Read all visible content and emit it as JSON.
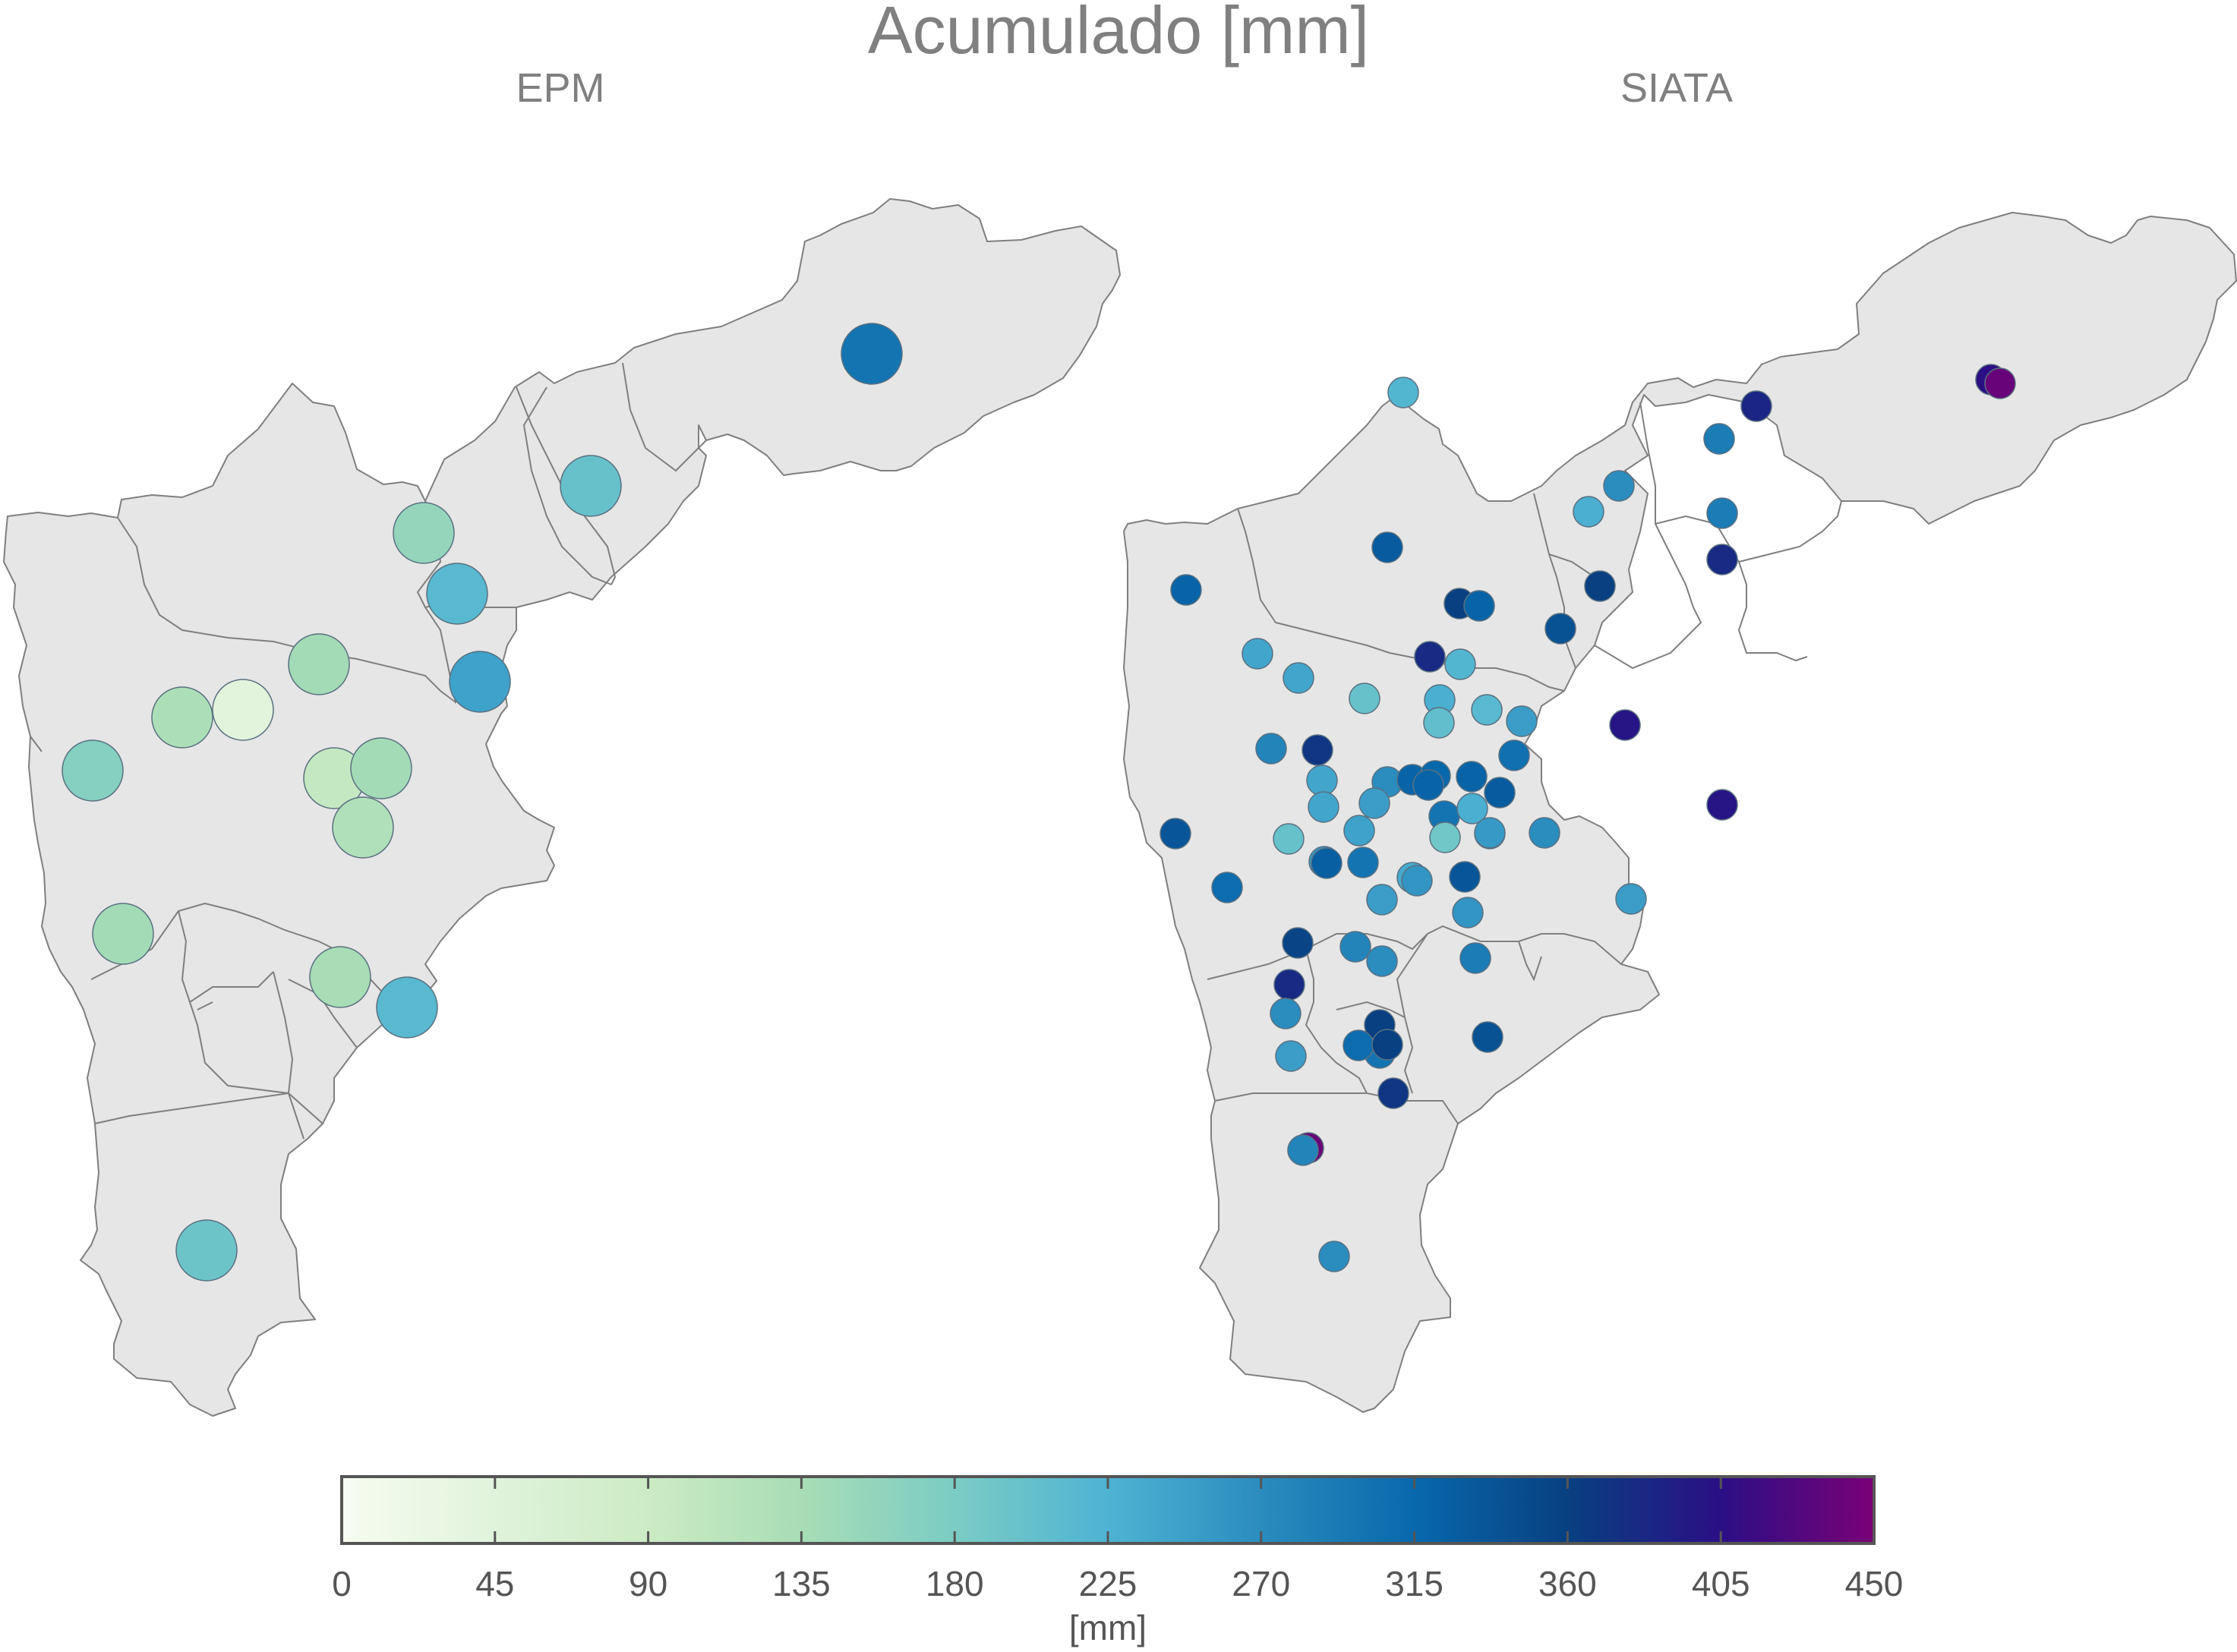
{
  "title": "Acumulado [mm]",
  "maps": [
    {
      "subtitle": "EPM",
      "stations": [
        {
          "v": 300
        },
        {
          "v": 200
        },
        {
          "v": 155
        },
        {
          "v": 215
        },
        {
          "v": 245
        },
        {
          "v": 140
        },
        {
          "v": 130
        },
        {
          "v": 40
        },
        {
          "v": 170
        },
        {
          "v": 100
        },
        {
          "v": 140
        },
        {
          "v": 125
        },
        {
          "v": 140
        },
        {
          "v": 135
        },
        {
          "v": 215
        },
        {
          "v": 195
        }
      ]
    },
    {
      "subtitle": "SIATA",
      "stations": [
        {
          "v": 220
        },
        {
          "v": 405
        },
        {
          "v": 440
        },
        {
          "v": 385
        },
        {
          "v": 290
        },
        {
          "v": 270
        },
        {
          "v": 230
        },
        {
          "v": 330
        },
        {
          "v": 290
        },
        {
          "v": 380
        },
        {
          "v": 360
        },
        {
          "v": 320
        },
        {
          "v": 340
        },
        {
          "v": 360
        },
        {
          "v": 320
        },
        {
          "v": 240
        },
        {
          "v": 380
        },
        {
          "v": 220
        },
        {
          "v": 240
        },
        {
          "v": 200
        },
        {
          "v": 230
        },
        {
          "v": 205
        },
        {
          "v": 215
        },
        {
          "v": 250
        },
        {
          "v": 280
        },
        {
          "v": 400
        },
        {
          "v": 305
        },
        {
          "v": 370
        },
        {
          "v": 240
        },
        {
          "v": 270
        },
        {
          "v": 320
        },
        {
          "v": 315
        },
        {
          "v": 320
        },
        {
          "v": 320
        },
        {
          "v": 250
        },
        {
          "v": 240
        },
        {
          "v": 330
        },
        {
          "v": 300
        },
        {
          "v": 230
        },
        {
          "v": 190
        },
        {
          "v": 245
        },
        {
          "v": 215
        },
        {
          "v": 335
        },
        {
          "v": 200
        },
        {
          "v": 270
        },
        {
          "v": 300
        },
        {
          "v": 255
        },
        {
          "v": 235
        },
        {
          "v": 255
        },
        {
          "v": 260
        },
        {
          "v": 400
        },
        {
          "v": 335
        },
        {
          "v": 250
        },
        {
          "v": 250
        },
        {
          "v": 310
        },
        {
          "v": 325
        },
        {
          "v": 280
        },
        {
          "v": 270
        },
        {
          "v": 360
        },
        {
          "v": 355
        },
        {
          "v": 290
        },
        {
          "v": 260
        },
        {
          "v": 380
        },
        {
          "v": 270
        },
        {
          "v": 300
        },
        {
          "v": 310
        },
        {
          "v": 360
        },
        {
          "v": 370
        },
        {
          "v": 440
        },
        {
          "v": 340
        },
        {
          "v": 250
        },
        {
          "v": 280
        },
        {
          "v": 270
        }
      ]
    }
  ],
  "colorbar": {
    "min": 0,
    "max": 450,
    "ticks": [
      "0",
      "45",
      "90",
      "135",
      "180",
      "225",
      "270",
      "315",
      "360",
      "405",
      "450"
    ],
    "label": "[mm]",
    "stops": [
      "#f7fcf0",
      "#e0f3db",
      "#ccebc5",
      "#a8ddb5",
      "#7bccc4",
      "#4eb3d3",
      "#2b8cbe",
      "#0868ac",
      "#084081",
      "#2b0f85",
      "#7a0177"
    ]
  },
  "colors": {
    "map_fill": "#e6e6e6",
    "map_stroke": "#7f7f7f",
    "title_text": "#808080",
    "tick_text": "#555555"
  }
}
